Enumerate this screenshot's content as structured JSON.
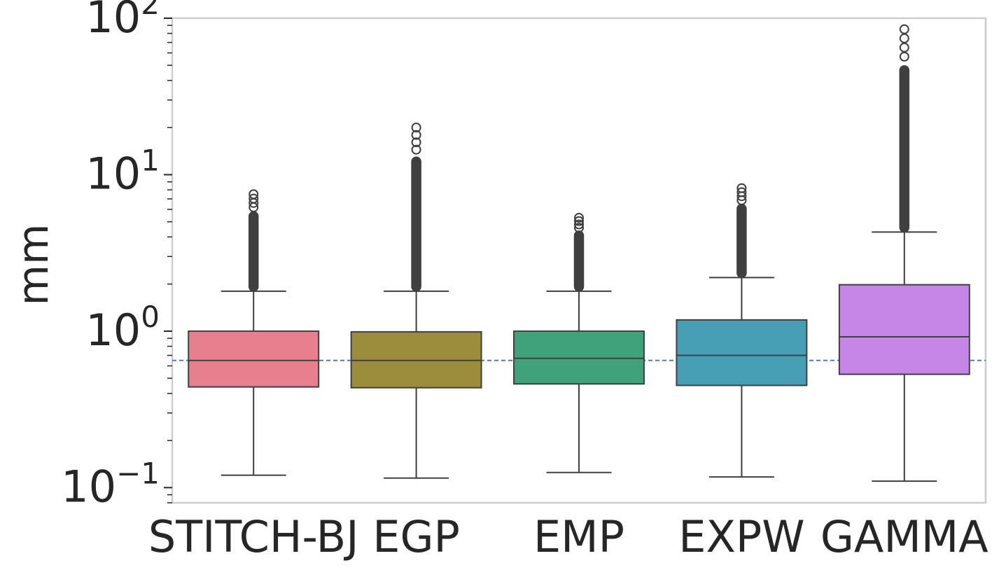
{
  "chart_data": {
    "type": "boxplot",
    "yscale": "log",
    "ylim": [
      0.08,
      100
    ],
    "ylabel": "mm",
    "xlabel": "",
    "title": "",
    "yticks": [
      {
        "value": 0.1,
        "base": "10",
        "exp": "−1"
      },
      {
        "value": 1,
        "base": "10",
        "exp": "0"
      },
      {
        "value": 10,
        "base": "10",
        "exp": "1"
      },
      {
        "value": 100,
        "base": "10",
        "exp": "2"
      }
    ],
    "grid": false,
    "reference_line": {
      "value": 0.65,
      "style": "dashed",
      "color": "#4c72b0"
    },
    "categories": [
      "STITCH-BJ",
      "EGP",
      "EMP",
      "EXPW",
      "GAMMA"
    ],
    "boxes": [
      {
        "name": "STITCH-BJ",
        "color": "#e87f8f",
        "whisker_low": 0.12,
        "q1": 0.44,
        "median": 0.65,
        "q3": 1.0,
        "whisker_high": 1.8,
        "outlier_min": 1.8,
        "outlier_max": 7.5
      },
      {
        "name": "EGP",
        "color": "#9c8d3c",
        "whisker_low": 0.115,
        "q1": 0.435,
        "median": 0.65,
        "q3": 0.99,
        "whisker_high": 1.8,
        "outlier_min": 1.8,
        "outlier_max": 20
      },
      {
        "name": "EMP",
        "color": "#3fa27a",
        "whisker_low": 0.125,
        "q1": 0.46,
        "median": 0.67,
        "q3": 1.0,
        "whisker_high": 1.8,
        "outlier_min": 1.8,
        "outlier_max": 5.3
      },
      {
        "name": "EXPW",
        "color": "#479fb5",
        "whisker_low": 0.117,
        "q1": 0.45,
        "median": 0.7,
        "q3": 1.18,
        "whisker_high": 2.2,
        "outlier_min": 2.2,
        "outlier_max": 8.2
      },
      {
        "name": "GAMMA",
        "color": "#c586e8",
        "whisker_low": 0.11,
        "q1": 0.53,
        "median": 0.92,
        "q3": 1.98,
        "whisker_high": 4.3,
        "outlier_min": 4.3,
        "outlier_max": 85
      }
    ]
  }
}
